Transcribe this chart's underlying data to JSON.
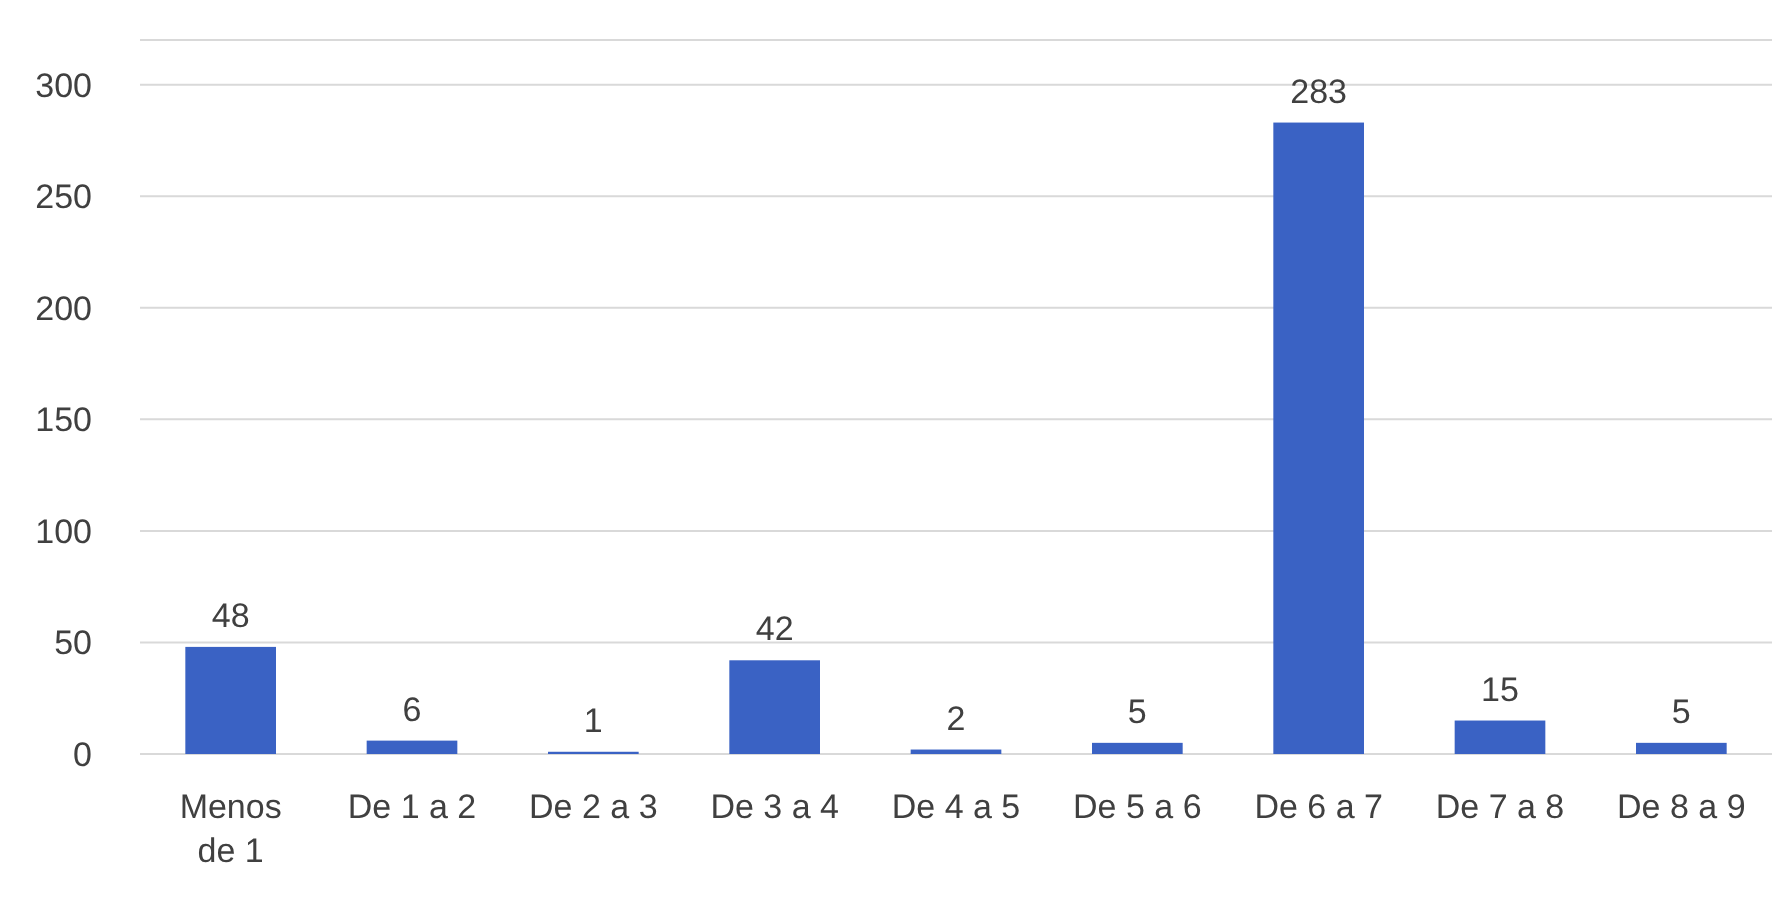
{
  "chart_data": {
    "type": "bar",
    "categories": [
      "Menos de 1",
      "De 1 a 2",
      "De 2 a 3",
      "De 3 a 4",
      "De 4 a 5",
      "De 5 a 6",
      "De 6 a 7",
      "De 7 a 8",
      "De 8 a 9"
    ],
    "values": [
      48,
      6,
      1,
      42,
      2,
      5,
      283,
      15,
      5
    ],
    "color": "#3a62c4",
    "ylim": [
      0,
      320
    ],
    "yticks": [
      0,
      50,
      100,
      150,
      200,
      250,
      300
    ],
    "grid": "y",
    "data_labels": true
  }
}
